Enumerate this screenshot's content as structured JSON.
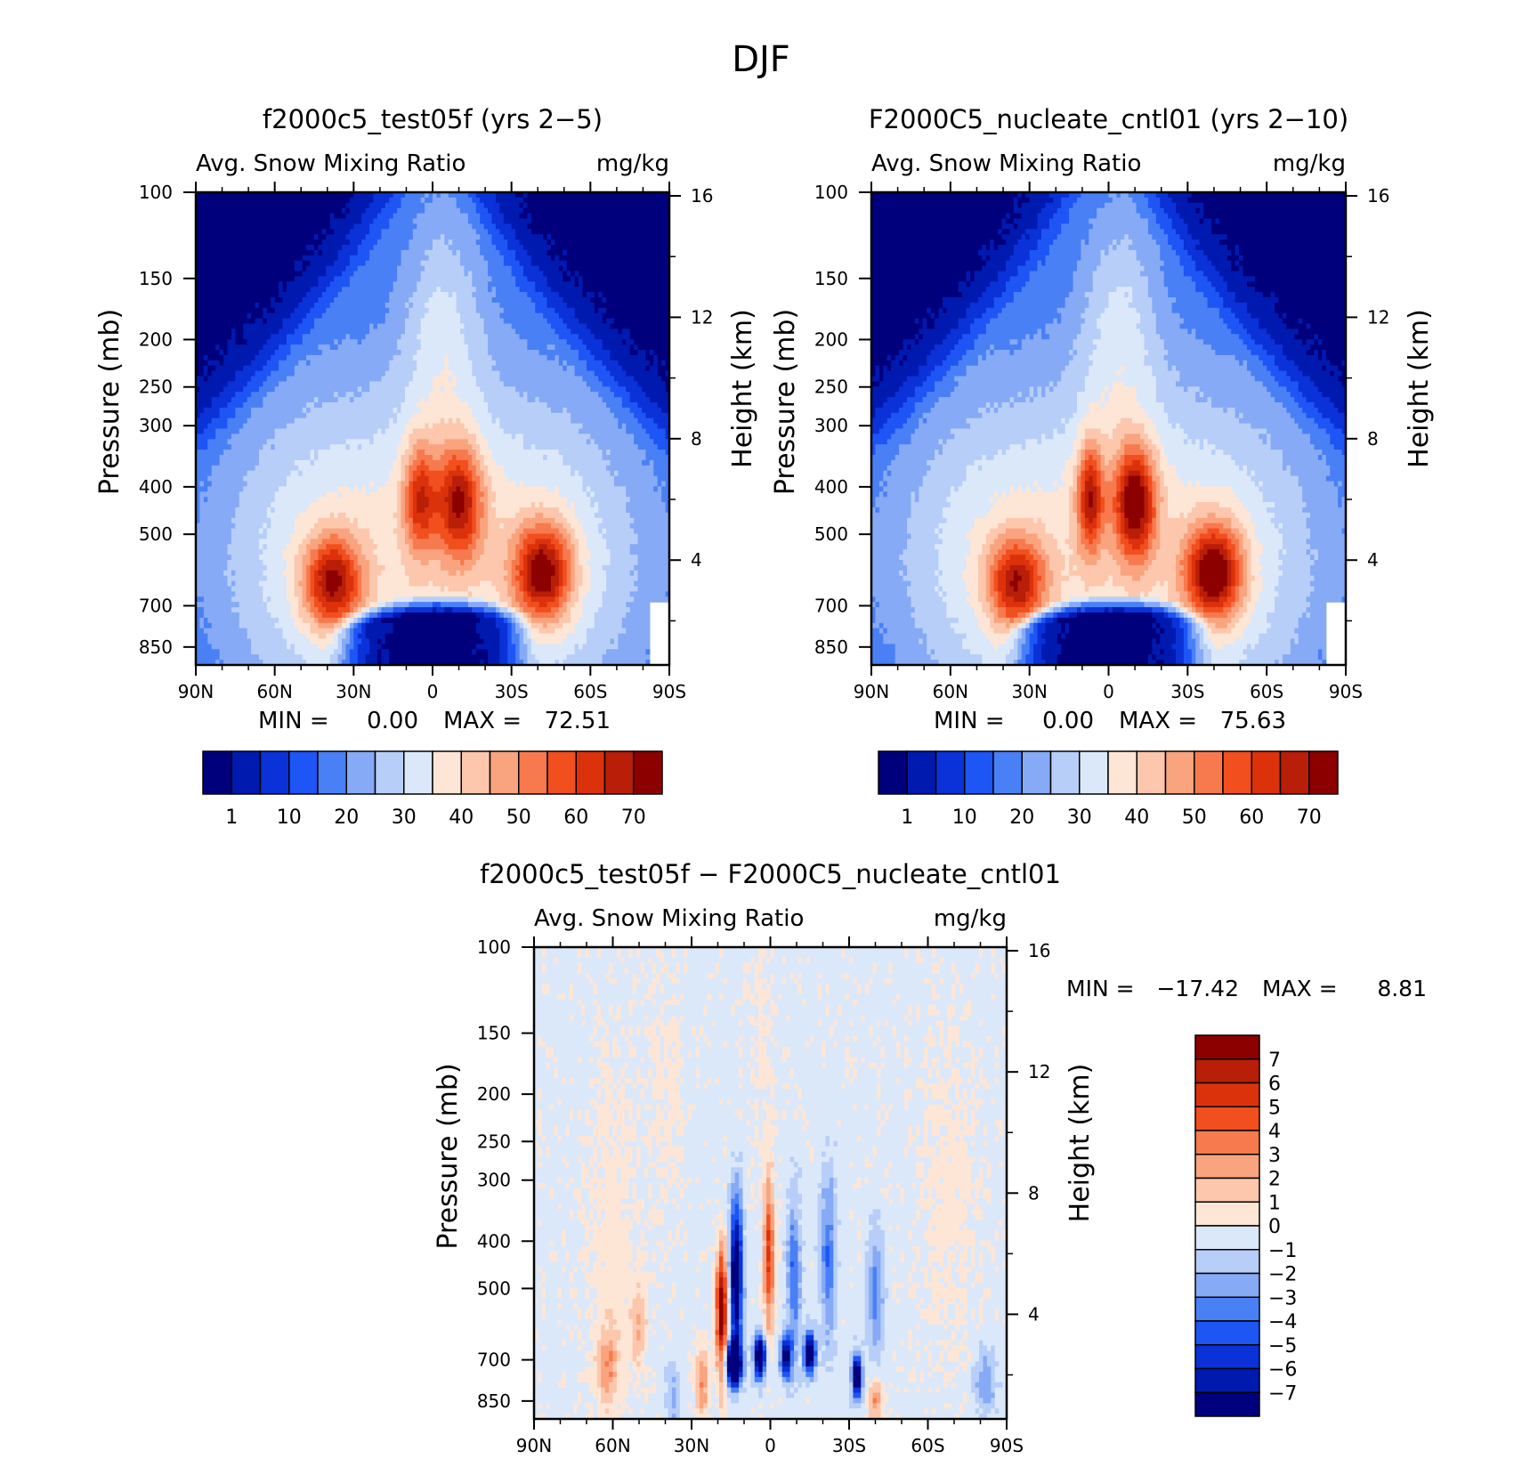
{
  "title": "DJF",
  "colors": {
    "abs_levels": [
      "#00007d",
      "#001ab0",
      "#0a32d8",
      "#1e55f5",
      "#4a80f5",
      "#86aaf5",
      "#b7cef8",
      "#dbe8fa",
      "#fde6d6",
      "#fcc7ad",
      "#f9a47e",
      "#f77a4f",
      "#f24f1f",
      "#dc320c",
      "#b81e08",
      "#8c0000"
    ],
    "diff_levels": [
      "#00007d",
      "#001ab0",
      "#0a32d8",
      "#1e55f5",
      "#4a80f5",
      "#86aaf5",
      "#b7cef8",
      "#dbe8fa",
      "#fde6d6",
      "#fcc7ad",
      "#f9a47e",
      "#f77a4f",
      "#f24f1f",
      "#dc320c",
      "#b81e08",
      "#8c0000"
    ]
  },
  "chart_data": [
    {
      "type": "heatmap",
      "title": "f2000c5_test05f (yrs 2-5)",
      "subtitle_left": "Avg. Snow Mixing Ratio",
      "subtitle_right": "mg/kg",
      "ylabel": "Pressure (mb)",
      "ylabel_right": "Height (km)",
      "x_ticks": [
        "90N",
        "60N",
        "30N",
        "0",
        "30S",
        "60S",
        "90S"
      ],
      "y_ticks": [
        "100",
        "150",
        "200",
        "250",
        "300",
        "400",
        "500",
        "700",
        "850"
      ],
      "y_right_ticks": [
        "16",
        "12",
        "8",
        "4"
      ],
      "min_label": "MIN =",
      "min_value": "0.00",
      "max_label": "MAX =",
      "max_value": "72.51",
      "colorbar_labels": [
        "1",
        "10",
        "20",
        "30",
        "40",
        "50",
        "60",
        "70"
      ],
      "field": {
        "kind": "abs",
        "level_step": 5,
        "hole": [
          0,
          9,
          14,
          68
        ],
        "lobes": [
          {
            "lat": 38,
            "p": 630,
            "amp": 36,
            "slat": 11,
            "sp": 0.22
          },
          {
            "lat": 5,
            "p": 420,
            "amp": 27,
            "slat": 6,
            "sp": 0.26
          },
          {
            "lat": -10,
            "p": 430,
            "amp": 34,
            "slat": 9,
            "sp": 0.27
          },
          {
            "lat": -42,
            "p": 600,
            "amp": 40,
            "slat": 11,
            "sp": 0.23
          }
        ],
        "max": 72.51
      }
    },
    {
      "type": "heatmap",
      "title": "F2000C5_nucleate_cntl01 (yrs 2-10)",
      "subtitle_left": "Avg. Snow Mixing Ratio",
      "subtitle_right": "mg/kg",
      "ylabel": "Pressure (mb)",
      "ylabel_right": "Height (km)",
      "x_ticks": [
        "90N",
        "60N",
        "30N",
        "0",
        "30S",
        "60S",
        "90S"
      ],
      "y_ticks": [
        "100",
        "150",
        "200",
        "250",
        "300",
        "400",
        "500",
        "700",
        "850"
      ],
      "y_right_ticks": [
        "16",
        "12",
        "8",
        "4"
      ],
      "min_label": "MIN =",
      "min_value": "0.00",
      "max_label": "MAX =",
      "max_value": "75.63",
      "colorbar_labels": [
        "1",
        "10",
        "20",
        "30",
        "40",
        "50",
        "60",
        "70"
      ],
      "field": {
        "kind": "abs",
        "level_step": 5,
        "hole": [
          0,
          9,
          14,
          68
        ],
        "lobes": [
          {
            "lat": 35,
            "p": 630,
            "amp": 34,
            "slat": 11,
            "sp": 0.22
          },
          {
            "lat": 7,
            "p": 420,
            "amp": 33,
            "slat": 5,
            "sp": 0.26
          },
          {
            "lat": -10,
            "p": 430,
            "amp": 40,
            "slat": 8,
            "sp": 0.27
          },
          {
            "lat": -40,
            "p": 600,
            "amp": 42,
            "slat": 11,
            "sp": 0.23
          }
        ],
        "max": 75.63
      }
    },
    {
      "type": "heatmap",
      "title": "f2000c5_test05f - F2000C5_nucleate_cntl01",
      "subtitle_left": "Avg. Snow Mixing Ratio",
      "subtitle_right": "mg/kg",
      "ylabel": "Pressure (mb)",
      "ylabel_right": "Height (km)",
      "x_ticks": [
        "90N",
        "60N",
        "30N",
        "0",
        "30S",
        "60S",
        "90S"
      ],
      "y_ticks": [
        "100",
        "150",
        "200",
        "250",
        "300",
        "400",
        "500",
        "700",
        "850"
      ],
      "y_right_ticks": [
        "16",
        "12",
        "8",
        "4"
      ],
      "min_label": "MIN =",
      "min_value": "-17.42",
      "max_label": "MAX =",
      "max_value": "8.81",
      "colorbar_labels": [
        "7",
        "6",
        "5",
        "4",
        "3",
        "2",
        "1",
        "0",
        "-1",
        "-2",
        "-3",
        "-4",
        "-5",
        "-6",
        "-7"
      ],
      "field": {
        "kind": "diff",
        "level_step": 1
      }
    }
  ]
}
